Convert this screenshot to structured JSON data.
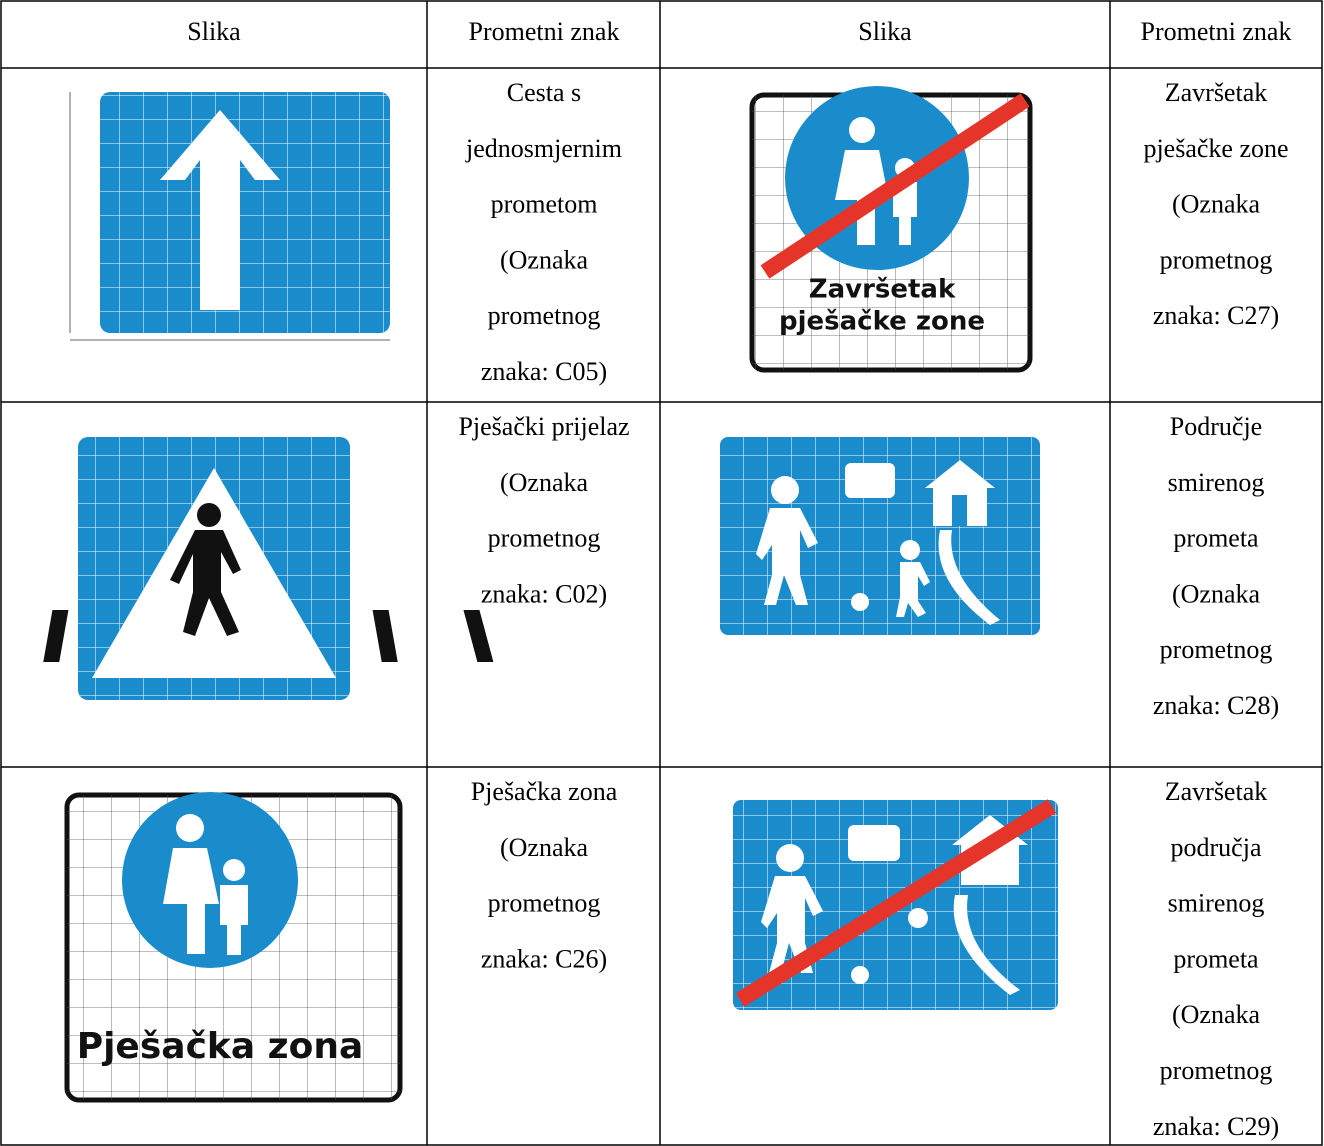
{
  "table": {
    "header": [
      "Slika",
      "Prometni znak",
      "Slika",
      "Prometni znak"
    ],
    "rows": [
      [
        {
          "lines": [
            "Cesta s",
            "jednosmjernim",
            "prometom",
            "(Oznaka",
            "prometnog",
            "znaka: C05)"
          ]
        },
        {
          "sign_text": [
            "Završetak",
            "pješačke zone"
          ],
          "lines": [
            "Završetak",
            "pješačke zone",
            "(Oznaka",
            "prometnog",
            "znaka: C27)"
          ]
        }
      ],
      [
        {
          "lines": [
            "Pješački prijelaz",
            "(Oznaka",
            "prometnog",
            "znaka: C02)"
          ]
        },
        {
          "lines": [
            "Područje",
            "smirenog",
            "prometa",
            "(Oznaka",
            "prometnog",
            "znaka: C28)"
          ]
        }
      ],
      [
        {
          "sign_text": [
            "Pješačka zona"
          ],
          "lines": [
            "Pješačka zona",
            "(Oznaka",
            "prometnog",
            "znaka: C26)"
          ]
        },
        {
          "lines": [
            "Završetak",
            "područja",
            "smirenog",
            "prometa",
            "(Oznaka",
            "prometnog",
            "znaka: C29)"
          ]
        }
      ]
    ]
  }
}
